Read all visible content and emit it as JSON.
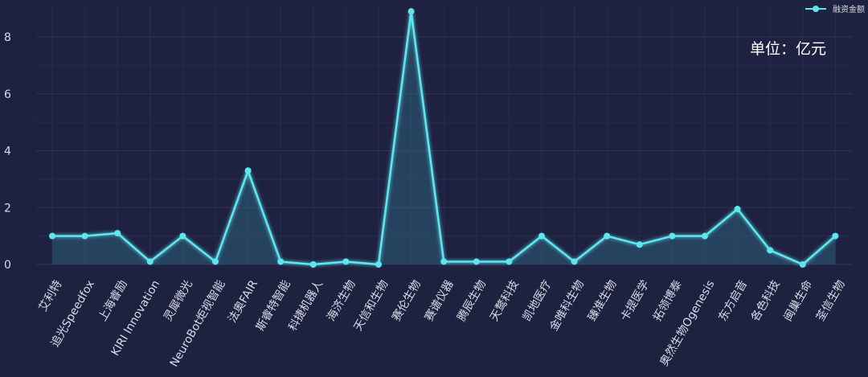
{
  "chart_data": {
    "type": "area",
    "title": "",
    "xlabel": "",
    "ylabel": "",
    "unit_label": "单位：亿元",
    "ylim": [
      0,
      9
    ],
    "y_ticks": [
      0,
      2,
      4,
      6,
      8
    ],
    "grid": true,
    "legend_position": "top-right",
    "categories": [
      "艾利特",
      "追光Speedfox",
      "上海睿励",
      "KIRI Innovation",
      "灵犀微光",
      "NeuroBot炬视智能",
      "法奥FAIR",
      "斯睿特智能",
      "科捷机器人",
      "海济生物",
      "天信和生物",
      "赛伦生物",
      "赛谱仪器",
      "腾辰生物",
      "天鹜科技",
      "凯地医疗",
      "金唯科生物",
      "臻准生物",
      "卡提医学",
      "拓领博泰",
      "奥然生物Ogenesis",
      "东方启音",
      "各色科技",
      "闽巢生命",
      "荃信生物"
    ],
    "series": [
      {
        "name": "融资金额",
        "color": "#5ee6f0",
        "values": [
          1.0,
          1.0,
          1.1,
          0.1,
          1.0,
          0.1,
          3.3,
          0.1,
          0.0,
          0.1,
          0.0,
          8.9,
          0.1,
          0.1,
          0.1,
          1.0,
          0.1,
          1.0,
          0.7,
          1.0,
          1.0,
          1.95,
          0.5,
          0.0,
          1.0
        ]
      }
    ]
  }
}
